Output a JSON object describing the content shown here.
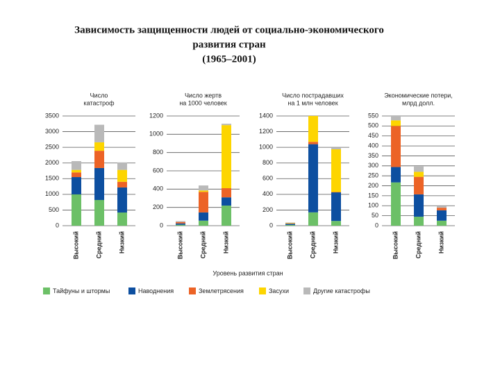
{
  "title": [
    "Зависимость защищенности людей от социально-экономического",
    "развития стран",
    "(1965–2001)"
  ],
  "x_label": "Уровень развития стран",
  "chart_data": [
    {
      "type": "bar",
      "stacked": true,
      "grid": true,
      "title": [
        "Число",
        "катастроф"
      ],
      "categories": [
        "Высокий",
        "Средний",
        "Низкий"
      ],
      "ylim": [
        0,
        3500
      ],
      "yticks": [
        0,
        500,
        1000,
        1500,
        2000,
        2500,
        3000,
        3500
      ],
      "series": [
        {
          "name": "Тайфуны и штормы",
          "color": "#6cc067",
          "values": [
            1000,
            820,
            420
          ]
        },
        {
          "name": "Наводнения",
          "color": "#0d4fa0",
          "values": [
            550,
            1020,
            800
          ]
        },
        {
          "name": "Землетрясения",
          "color": "#ec6326",
          "values": [
            150,
            550,
            180
          ]
        },
        {
          "name": "Засухи",
          "color": "#fdd500",
          "values": [
            80,
            270,
            380
          ]
        },
        {
          "name": "Другие катастрофы",
          "color": "#b9b9b9",
          "values": [
            280,
            560,
            240
          ]
        }
      ]
    },
    {
      "type": "bar",
      "stacked": true,
      "grid": true,
      "title": [
        "Число жертв",
        "на 1000 человек"
      ],
      "categories": [
        "Высокий",
        "Средний",
        "Низкий"
      ],
      "ylim": [
        0,
        1200
      ],
      "yticks": [
        0,
        200,
        400,
        600,
        800,
        1000,
        1200
      ],
      "series": [
        {
          "name": "Тайфуны и штормы",
          "color": "#6cc067",
          "values": [
            10,
            55,
            220
          ]
        },
        {
          "name": "Наводнения",
          "color": "#0d4fa0",
          "values": [
            15,
            90,
            90
          ]
        },
        {
          "name": "Землетрясения",
          "color": "#ec6326",
          "values": [
            15,
            225,
            100
          ]
        },
        {
          "name": "Засухи",
          "color": "#fdd500",
          "values": [
            0,
            15,
            690
          ]
        },
        {
          "name": "Другие катастрофы",
          "color": "#b9b9b9",
          "values": [
            10,
            55,
            15
          ]
        }
      ]
    },
    {
      "type": "bar",
      "stacked": true,
      "grid": true,
      "title": [
        "Число пострадавших",
        "на 1 млн человек"
      ],
      "categories": [
        "Высокий",
        "Средний",
        "Низкий"
      ],
      "ylim": [
        0,
        1400
      ],
      "yticks": [
        0,
        200,
        400,
        600,
        800,
        1000,
        1200,
        1400
      ],
      "series": [
        {
          "name": "Тайфуны и штормы",
          "color": "#6cc067",
          "values": [
            10,
            170,
            60
          ]
        },
        {
          "name": "Наводнения",
          "color": "#0d4fa0",
          "values": [
            15,
            870,
            365
          ]
        },
        {
          "name": "Землетрясения",
          "color": "#ec6326",
          "values": [
            5,
            30,
            5
          ]
        },
        {
          "name": "Засухи",
          "color": "#fdd500",
          "values": [
            5,
            330,
            545
          ]
        },
        {
          "name": "Другие катастрофы",
          "color": "#b9b9b9",
          "values": [
            5,
            0,
            25
          ]
        }
      ]
    },
    {
      "type": "bar",
      "stacked": true,
      "grid": true,
      "title": [
        "Экономические потери,",
        "млрд долл."
      ],
      "categories": [
        "Высокий",
        "Средний",
        "Низкий"
      ],
      "ylim": [
        0,
        550
      ],
      "yticks": [
        0,
        50,
        100,
        150,
        200,
        250,
        300,
        350,
        400,
        450,
        500,
        550
      ],
      "series": [
        {
          "name": "Тайфуны и штормы",
          "color": "#6cc067",
          "values": [
            217,
            45,
            25
          ]
        },
        {
          "name": "Наводнения",
          "color": "#0d4fa0",
          "values": [
            77,
            112,
            52
          ]
        },
        {
          "name": "Землетрясения",
          "color": "#ec6326",
          "values": [
            206,
            88,
            13
          ]
        },
        {
          "name": "Засухи",
          "color": "#fdd500",
          "values": [
            28,
            25,
            0
          ]
        },
        {
          "name": "Другие катастрофы",
          "color": "#b9b9b9",
          "values": [
            22,
            27,
            7
          ]
        }
      ]
    }
  ]
}
